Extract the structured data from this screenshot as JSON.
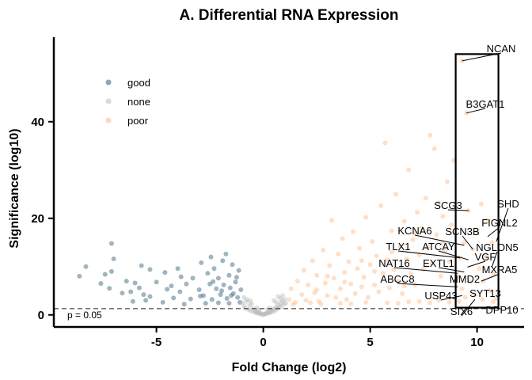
{
  "chart_data": {
    "type": "scatter",
    "title": "A. Differential RNA Expression",
    "xlabel": "Fold Change (log2)",
    "ylabel": "Significance (log10)",
    "xlim": [
      -9.8,
      12.2
    ],
    "ylim": [
      -2.5,
      57.5
    ],
    "x_ticks": [
      -5,
      0,
      5,
      10
    ],
    "y_ticks": [
      0,
      20,
      40
    ],
    "x_tick_labels": [
      "-5",
      "0",
      "5",
      "10"
    ],
    "y_tick_labels": [
      "0",
      "20",
      "40"
    ],
    "grid": false,
    "legend_position": "top-left",
    "threshold": {
      "y": 1.3,
      "label": "p = 0.05"
    },
    "highlight_box": {
      "x": [
        9,
        11
      ],
      "y": [
        1.5,
        54
      ]
    },
    "series": [
      {
        "name": "good",
        "color": "#1b4f68",
        "points": [
          [
            -8.6,
            8.0
          ],
          [
            -8.3,
            10.0
          ],
          [
            -7.6,
            6.5
          ],
          [
            -7.4,
            8.4
          ],
          [
            -7.2,
            5.5
          ],
          [
            -7.1,
            9.0
          ],
          [
            -7.1,
            14.8
          ],
          [
            -7.0,
            11.6
          ],
          [
            -6.6,
            4.5
          ],
          [
            -6.4,
            7.0
          ],
          [
            -6.2,
            4.8
          ],
          [
            -6.0,
            6.6
          ],
          [
            -5.8,
            5.6
          ],
          [
            -5.6,
            4.2
          ],
          [
            -5.7,
            10.2
          ],
          [
            -5.3,
            9.4
          ],
          [
            -5.3,
            3.8
          ],
          [
            -5.0,
            6.8
          ],
          [
            -4.6,
            8.8
          ],
          [
            -4.5,
            5.3
          ],
          [
            -4.2,
            3.5
          ],
          [
            -4.0,
            9.6
          ],
          [
            -3.9,
            4.8
          ],
          [
            -3.6,
            6.4
          ],
          [
            -3.4,
            3.3
          ],
          [
            -3.3,
            7.6
          ],
          [
            -3.0,
            5.2
          ],
          [
            -2.9,
            10.8
          ],
          [
            -2.8,
            4.0
          ],
          [
            -2.6,
            8.6
          ],
          [
            -2.5,
            6.4
          ],
          [
            -2.4,
            3.2
          ],
          [
            -2.3,
            9.6
          ],
          [
            -2.2,
            5.4
          ],
          [
            -2.1,
            7.6
          ],
          [
            -2.0,
            4.2
          ],
          [
            -1.9,
            11.2
          ],
          [
            -1.85,
            6.2
          ],
          [
            -1.7,
            3.4
          ],
          [
            -1.6,
            8.2
          ],
          [
            -1.55,
            5.6
          ],
          [
            -1.45,
            10.4
          ],
          [
            -1.4,
            4.4
          ],
          [
            -1.3,
            6.8
          ],
          [
            -1.2,
            3.6
          ],
          [
            -1.15,
            9.2
          ],
          [
            -1.1,
            2.6
          ],
          [
            -1.05,
            5.2
          ],
          [
            -2.7,
            2.4
          ],
          [
            -2.1,
            2.5
          ],
          [
            -1.6,
            2.4
          ],
          [
            -3.7,
            2.2
          ],
          [
            -4.7,
            2.6
          ],
          [
            -5.5,
            3.0
          ],
          [
            -6.1,
            2.8
          ],
          [
            -2.45,
            12.0
          ],
          [
            -1.75,
            12.6
          ],
          [
            -2.95,
            3.9
          ],
          [
            -3.85,
            7.9
          ],
          [
            -4.3,
            6.0
          ],
          [
            -1.25,
            7.8
          ],
          [
            -1.95,
            5.0
          ],
          [
            -2.35,
            6.9
          ],
          [
            -1.5,
            4.0
          ]
        ]
      },
      {
        "name": "none",
        "color": "#b5b5b5",
        "points": [
          [
            -1.0,
            2.5
          ],
          [
            -0.9,
            1.9
          ],
          [
            -0.85,
            1.4
          ],
          [
            -0.8,
            2.8
          ],
          [
            -0.7,
            1.1
          ],
          [
            -0.65,
            2.0
          ],
          [
            -0.6,
            0.8
          ],
          [
            -0.5,
            1.3
          ],
          [
            -0.45,
            0.6
          ],
          [
            -0.4,
            0.9
          ],
          [
            -0.35,
            0.4
          ],
          [
            -0.3,
            0.7
          ],
          [
            -0.25,
            0.3
          ],
          [
            -0.2,
            0.5
          ],
          [
            -0.15,
            0.2
          ],
          [
            -0.1,
            0.35
          ],
          [
            -0.05,
            0.1
          ],
          [
            0.0,
            0.05
          ],
          [
            0.05,
            0.12
          ],
          [
            0.1,
            0.3
          ],
          [
            0.15,
            0.22
          ],
          [
            0.2,
            0.5
          ],
          [
            0.25,
            0.35
          ],
          [
            0.3,
            0.7
          ],
          [
            0.35,
            0.5
          ],
          [
            0.4,
            1.0
          ],
          [
            0.45,
            0.7
          ],
          [
            0.5,
            1.3
          ],
          [
            0.55,
            0.9
          ],
          [
            0.6,
            1.6
          ],
          [
            0.65,
            1.2
          ],
          [
            0.7,
            2.0
          ],
          [
            0.75,
            1.5
          ],
          [
            0.8,
            2.5
          ],
          [
            0.85,
            1.8
          ],
          [
            0.9,
            2.9
          ],
          [
            0.95,
            2.2
          ],
          [
            1.0,
            3.2
          ],
          [
            1.05,
            2.4
          ],
          [
            0.6,
            2.6
          ],
          [
            0.8,
            3.4
          ],
          [
            -0.75,
            3.2
          ],
          [
            -0.55,
            2.3
          ],
          [
            0.3,
            1.4
          ],
          [
            -0.3,
            1.5
          ],
          [
            0.5,
            3.0
          ],
          [
            -0.9,
            3.6
          ],
          [
            0.9,
            4.0
          ],
          [
            0.2,
            1.1
          ],
          [
            -0.2,
            1.0
          ],
          [
            0.7,
            3.8
          ],
          [
            -0.6,
            2.9
          ]
        ]
      },
      {
        "name": "poor",
        "color": "#ffb27a",
        "points": [
          [
            1.2,
            3.2
          ],
          [
            1.3,
            5.4
          ],
          [
            1.5,
            2.6
          ],
          [
            1.6,
            7.0
          ],
          [
            1.8,
            4.2
          ],
          [
            1.9,
            9.2
          ],
          [
            2.0,
            3.0
          ],
          [
            2.1,
            6.2
          ],
          [
            2.3,
            11.2
          ],
          [
            2.4,
            4.6
          ],
          [
            2.5,
            8.2
          ],
          [
            2.6,
            2.8
          ],
          [
            2.8,
            13.4
          ],
          [
            2.9,
            6.6
          ],
          [
            3.0,
            4.0
          ],
          [
            3.1,
            10.2
          ],
          [
            3.2,
            19.6
          ],
          [
            3.3,
            7.6
          ],
          [
            3.4,
            3.6
          ],
          [
            3.5,
            12.6
          ],
          [
            3.6,
            5.4
          ],
          [
            3.7,
            15.8
          ],
          [
            3.8,
            8.8
          ],
          [
            3.9,
            3.2
          ],
          [
            4.0,
            11.0
          ],
          [
            4.1,
            6.4
          ],
          [
            4.2,
            17.2
          ],
          [
            4.3,
            4.4
          ],
          [
            4.4,
            9.6
          ],
          [
            4.5,
            13.8
          ],
          [
            4.6,
            5.8
          ],
          [
            4.7,
            7.8
          ],
          [
            4.8,
            20.2
          ],
          [
            4.9,
            3.6
          ],
          [
            5.0,
            10.4
          ],
          [
            5.1,
            15.2
          ],
          [
            5.2,
            6.2
          ],
          [
            5.3,
            12.2
          ],
          [
            5.4,
            4.8
          ],
          [
            5.5,
            22.6
          ],
          [
            5.6,
            8.6
          ],
          [
            5.7,
            35.6
          ],
          [
            5.8,
            11.4
          ],
          [
            5.9,
            5.6
          ],
          [
            6.0,
            17.4
          ],
          [
            6.1,
            9.4
          ],
          [
            6.2,
            25.0
          ],
          [
            6.3,
            7.0
          ],
          [
            6.4,
            14.2
          ],
          [
            6.5,
            4.4
          ],
          [
            6.6,
            19.4
          ],
          [
            6.7,
            11.6
          ],
          [
            6.8,
            30.0
          ],
          [
            6.9,
            8.6
          ],
          [
            7.0,
            15.6
          ],
          [
            7.1,
            6.2
          ],
          [
            7.2,
            21.2
          ],
          [
            7.3,
            12.4
          ],
          [
            7.4,
            18.0
          ],
          [
            7.5,
            9.6
          ],
          [
            7.6,
            24.2
          ],
          [
            7.7,
            14.0
          ],
          [
            7.8,
            37.2
          ],
          [
            7.9,
            10.6
          ],
          [
            8.0,
            34.4
          ],
          [
            8.1,
            16.6
          ],
          [
            8.2,
            23.2
          ],
          [
            8.3,
            8.0
          ],
          [
            8.4,
            20.4
          ],
          [
            8.5,
            13.2
          ],
          [
            8.6,
            27.6
          ],
          [
            8.7,
            11.0
          ],
          [
            8.8,
            18.6
          ],
          [
            8.9,
            32.0
          ],
          [
            2.2,
            2.5
          ],
          [
            3.6,
            2.4
          ],
          [
            4.8,
            2.6
          ],
          [
            5.8,
            2.5
          ],
          [
            6.8,
            2.7
          ],
          [
            7.8,
            2.5
          ],
          [
            1.4,
            2.2
          ],
          [
            2.7,
            2.2
          ],
          [
            4.1,
            2.3
          ],
          [
            6.3,
            2.4
          ],
          [
            7.3,
            2.8
          ],
          [
            8.2,
            3.0
          ],
          [
            8.7,
            2.6
          ],
          [
            3.0,
            8.0
          ],
          [
            4.6,
            11.2
          ],
          [
            6.0,
            13.0
          ],
          [
            7.1,
            17.0
          ],
          [
            8.4,
            15.0
          ],
          [
            5.2,
            9.0
          ],
          [
            2.5,
            5.2
          ],
          [
            3.8,
            6.8
          ],
          [
            6.6,
            6.0
          ],
          [
            9.1,
            8.0
          ],
          [
            9.2,
            11.8
          ],
          [
            9.3,
            5.4
          ],
          [
            9.4,
            15.0
          ],
          [
            9.5,
            41.8
          ],
          [
            9.3,
            52.6
          ],
          [
            9.6,
            21.6
          ],
          [
            9.7,
            6.8
          ],
          [
            9.8,
            13.6
          ],
          [
            9.9,
            4.2
          ],
          [
            10.0,
            17.2
          ],
          [
            10.1,
            9.6
          ],
          [
            10.2,
            23.0
          ],
          [
            10.3,
            7.0
          ],
          [
            10.4,
            12.0
          ],
          [
            10.5,
            19.6
          ],
          [
            10.6,
            5.0
          ],
          [
            10.7,
            15.0
          ],
          [
            10.8,
            8.4
          ],
          [
            10.9,
            3.4
          ],
          [
            9.15,
            2.8
          ],
          [
            9.45,
            3.6
          ],
          [
            10.25,
            3.2
          ],
          [
            10.75,
            2.7
          ]
        ]
      }
    ],
    "labels": [
      {
        "text": "NCAN",
        "x": 9.3,
        "y": 52.6
      },
      {
        "text": "B3GAT1",
        "x": 9.5,
        "y": 41.8
      },
      {
        "text": "SHD",
        "x": 10.9,
        "y": 15.2
      },
      {
        "text": "SCG3",
        "x": 9.6,
        "y": 21.6
      },
      {
        "text": "FIGNL2",
        "x": 10.5,
        "y": 16.2
      },
      {
        "text": "KCNA6",
        "x": 9.4,
        "y": 14.4
      },
      {
        "text": "SCN3B",
        "x": 9.8,
        "y": 13.6
      },
      {
        "text": "NGLON5",
        "x": 10.7,
        "y": 10.0
      },
      {
        "text": "TLX1",
        "x": 9.2,
        "y": 11.8
      },
      {
        "text": "ATCAY",
        "x": 9.6,
        "y": 11.4
      },
      {
        "text": "VGF",
        "x": 9.55,
        "y": 9.9
      },
      {
        "text": "NAT16",
        "x": 9.1,
        "y": 8.6
      },
      {
        "text": "EXTL1",
        "x": 9.4,
        "y": 8.9
      },
      {
        "text": "MXRA5",
        "x": 10.2,
        "y": 7.0
      },
      {
        "text": "ABCC8",
        "x": 9.1,
        "y": 5.8
      },
      {
        "text": "MMD2",
        "x": 9.3,
        "y": 5.4
      },
      {
        "text": "USP43",
        "x": 9.3,
        "y": 4.0
      },
      {
        "text": "SYT13",
        "x": 10.3,
        "y": 4.0
      },
      {
        "text": "SIX6",
        "x": 9.9,
        "y": 3.2
      },
      {
        "text": "DPP10",
        "x": 10.9,
        "y": 2.6
      }
    ]
  }
}
